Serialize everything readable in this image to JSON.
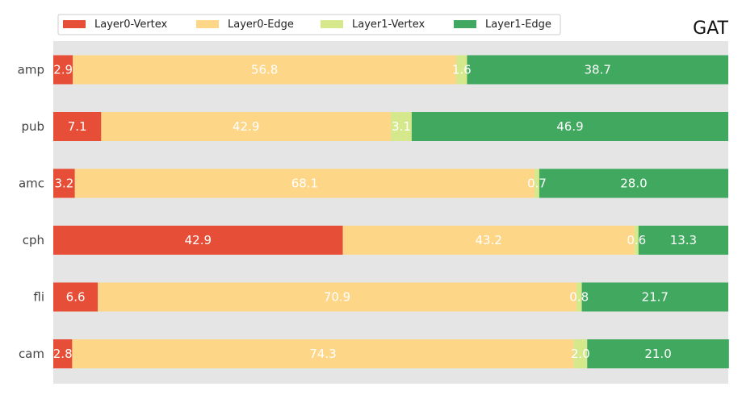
{
  "chart_data": {
    "type": "bar",
    "orientation": "horizontal",
    "stacked": true,
    "title": "GAT",
    "xlabel": "",
    "ylabel": "",
    "xlim": [
      0,
      100
    ],
    "grid": false,
    "legend_position": "top-left",
    "categories": [
      "amp",
      "pub",
      "amc",
      "cph",
      "fli",
      "cam"
    ],
    "series": [
      {
        "name": "Layer0-Vertex",
        "color": "#e64e37",
        "values": [
          2.9,
          7.1,
          3.2,
          42.9,
          6.6,
          2.8
        ]
      },
      {
        "name": "Layer0-Edge",
        "color": "#fed687",
        "values": [
          56.8,
          42.9,
          68.1,
          43.2,
          70.9,
          74.3
        ]
      },
      {
        "name": "Layer1-Vertex",
        "color": "#d5e98c",
        "values": [
          1.6,
          3.1,
          0.7,
          0.6,
          0.8,
          2.0
        ]
      },
      {
        "name": "Layer1-Edge",
        "color": "#41a85f",
        "values": [
          38.7,
          46.9,
          28.0,
          13.3,
          21.7,
          21.0
        ]
      }
    ],
    "colors": {
      "plot_background": "#e5e5e5",
      "label_text": "#ffffff"
    }
  }
}
